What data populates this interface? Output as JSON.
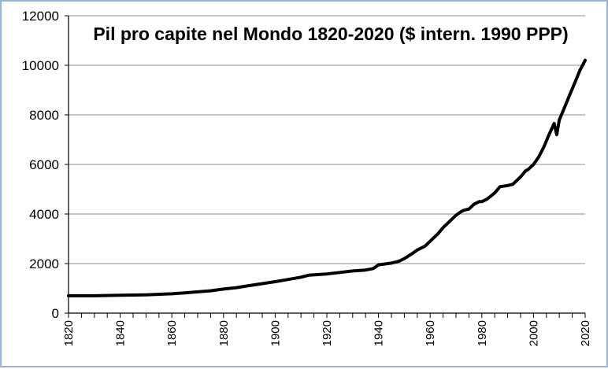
{
  "chart_data": {
    "type": "line",
    "title": "Pil pro capite nel Mondo 1820-2020 ($ intern. 1990 PPP)",
    "xlabel": "",
    "ylabel": "",
    "xlim": [
      1820,
      2020
    ],
    "ylim": [
      0,
      12000
    ],
    "y_ticks": [
      "0",
      "2000",
      "4000",
      "6000",
      "8000",
      "10000",
      "12000"
    ],
    "x_ticks": [
      "1820",
      "1840",
      "1860",
      "1880",
      "1900",
      "1920",
      "1940",
      "1960",
      "1980",
      "2000",
      "2020"
    ],
    "grid": "horizontal",
    "legend": "none",
    "line_color": "#000000",
    "series": [
      {
        "x": [
          1820,
          1830,
          1840,
          1850,
          1860,
          1865,
          1870,
          1875,
          1880,
          1885,
          1890,
          1895,
          1900,
          1905,
          1910,
          1913,
          1920,
          1925,
          1930,
          1935,
          1938,
          1940,
          1945,
          1948,
          1950,
          1953,
          1955,
          1958,
          1960,
          1963,
          1965,
          1968,
          1970,
          1972,
          1973,
          1975,
          1977,
          1979,
          1980,
          1982,
          1985,
          1987,
          1990,
          1992,
          1995,
          1997,
          1998,
          2000,
          2002,
          2004,
          2006,
          2008,
          2009,
          2010,
          2012,
          2014,
          2016,
          2018,
          2020
        ],
        "y": [
          700,
          700,
          720,
          740,
          780,
          820,
          860,
          900,
          970,
          1030,
          1110,
          1190,
          1270,
          1360,
          1450,
          1530,
          1580,
          1640,
          1700,
          1740,
          1800,
          1950,
          2020,
          2100,
          2200,
          2400,
          2550,
          2700,
          2900,
          3200,
          3450,
          3750,
          3950,
          4100,
          4150,
          4200,
          4400,
          4500,
          4500,
          4600,
          4850,
          5100,
          5150,
          5200,
          5500,
          5750,
          5800,
          6000,
          6300,
          6700,
          7200,
          7650,
          7200,
          7800,
          8300,
          8800,
          9300,
          9800,
          10200
        ]
      }
    ]
  }
}
